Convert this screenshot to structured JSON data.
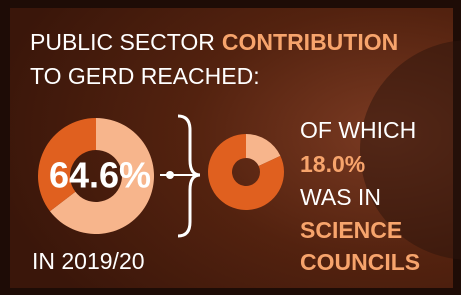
{
  "headline": {
    "plain": "PUBLIC SECTOR",
    "highlight": "CONTRIBUTION",
    "line2": "TO GERD REACHED:"
  },
  "period": "IN 2019/20",
  "detail": {
    "line1": "OF WHICH",
    "line3": "WAS IN",
    "highlight1": "SCIENCE",
    "highlight2": "COUNCILS"
  },
  "chart_data": [
    {
      "type": "donut",
      "values": [
        64.6,
        35.4
      ],
      "value_labels": [
        "64.6%",
        null
      ],
      "colors": [
        "#f7b58c",
        "#e0601f"
      ]
    },
    {
      "type": "donut",
      "values": [
        18.0,
        82.0
      ],
      "value_labels": [
        "18.0%",
        null
      ],
      "colors": [
        "#f7b58c",
        "#e0601f"
      ]
    }
  ]
}
